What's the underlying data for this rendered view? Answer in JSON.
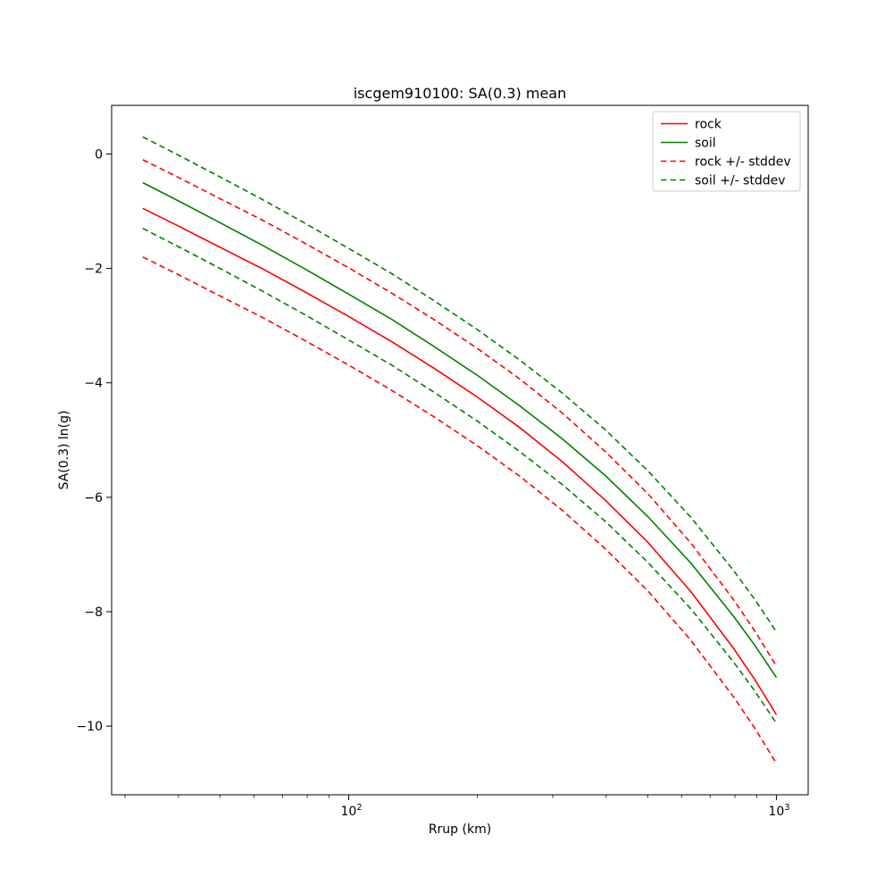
{
  "figure": {
    "background": "#ffffff",
    "text_color": "#000000",
    "spine_color": "#000000",
    "legend_border_color": "#cccccc"
  },
  "chart_data": {
    "type": "line",
    "title": "iscgem910100: SA(0.3) mean",
    "xlabel": "Rrup (km)",
    "ylabel": "SA(0.3) ln(g)",
    "x_scale": "log",
    "grid": false,
    "legend_position": "upper right",
    "xlim_log10": [
      1.4457,
      3.0743
    ],
    "ylim": [
      -11.2,
      0.85
    ],
    "x": [
      33,
      40,
      50,
      63,
      79,
      100,
      126,
      158,
      200,
      251,
      316,
      398,
      501,
      631,
      794,
      891,
      1000
    ],
    "series": [
      {
        "name": "rock",
        "color": "#ff0000",
        "dash": "solid",
        "values": [
          -0.95,
          -1.26,
          -1.63,
          -2.01,
          -2.41,
          -2.84,
          -3.28,
          -3.74,
          -4.25,
          -4.78,
          -5.38,
          -6.05,
          -6.79,
          -7.65,
          -8.64,
          -9.19,
          -9.8
        ]
      },
      {
        "name": "soil",
        "color": "#008000",
        "dash": "solid",
        "values": [
          -0.5,
          -0.82,
          -1.2,
          -1.6,
          -2.01,
          -2.45,
          -2.89,
          -3.36,
          -3.87,
          -4.4,
          -4.98,
          -5.62,
          -6.34,
          -7.15,
          -8.08,
          -8.59,
          -9.15
        ]
      },
      {
        "name": "rock +/- stddev",
        "color": "#ff0000",
        "dash": "dashed",
        "values_upper": [
          -0.1,
          -0.41,
          -0.78,
          -1.16,
          -1.56,
          -1.99,
          -2.43,
          -2.89,
          -3.4,
          -3.93,
          -4.53,
          -5.2,
          -5.94,
          -6.8,
          -7.79,
          -8.34,
          -8.95
        ],
        "values_lower": [
          -1.8,
          -2.11,
          -2.48,
          -2.86,
          -3.26,
          -3.69,
          -4.13,
          -4.59,
          -5.1,
          -5.63,
          -6.23,
          -6.9,
          -7.64,
          -8.5,
          -9.49,
          -10.04,
          -10.65
        ]
      },
      {
        "name": "soil +/- stddev",
        "color": "#008000",
        "dash": "dashed",
        "values_upper": [
          0.3,
          -0.02,
          -0.4,
          -0.8,
          -1.21,
          -1.65,
          -2.09,
          -2.56,
          -3.07,
          -3.6,
          -4.18,
          -4.82,
          -5.54,
          -6.35,
          -7.28,
          -7.79,
          -8.35
        ],
        "values_lower": [
          -1.3,
          -1.62,
          -2.0,
          -2.4,
          -2.81,
          -3.25,
          -3.69,
          -4.16,
          -4.67,
          -5.2,
          -5.78,
          -6.42,
          -7.14,
          -7.95,
          -8.88,
          -9.39,
          -9.95
        ]
      }
    ],
    "yticks": [
      {
        "v": 0,
        "label": "0"
      },
      {
        "v": -2,
        "label": "−2"
      },
      {
        "v": -4,
        "label": "−4"
      },
      {
        "v": -6,
        "label": "−6"
      },
      {
        "v": -8,
        "label": "−8"
      },
      {
        "v": -10,
        "label": "−10"
      }
    ],
    "xticks": [
      {
        "log10": 2,
        "base": "10",
        "exp": "2"
      },
      {
        "log10": 3,
        "base": "10",
        "exp": "3"
      }
    ],
    "xticks_minor": [
      30,
      40,
      50,
      60,
      70,
      80,
      90,
      200,
      300,
      400,
      500,
      600,
      700,
      800,
      900
    ]
  }
}
